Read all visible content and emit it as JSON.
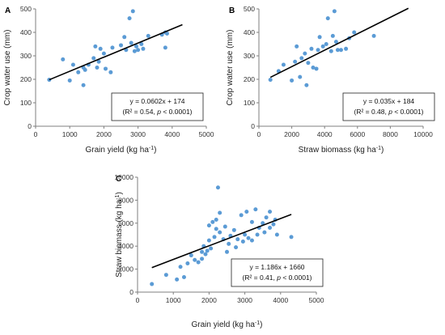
{
  "chart_data": [
    {
      "panel_label": "A",
      "type": "scatter",
      "xlabel": "Grain yield (kg ha⁻¹)",
      "ylabel": "Crop water use (mm)",
      "xlim": [
        0,
        5000
      ],
      "ylim": [
        0,
        500
      ],
      "xticks": [
        "0",
        "1000",
        "2000",
        "3000",
        "4000",
        "5000"
      ],
      "yticks": [
        "0",
        "100",
        "200",
        "300",
        "400",
        "500"
      ],
      "points": [
        [
          400,
          198
        ],
        [
          800,
          285
        ],
        [
          1000,
          195
        ],
        [
          1100,
          262
        ],
        [
          1250,
          230
        ],
        [
          1400,
          175
        ],
        [
          1400,
          250
        ],
        [
          1450,
          240
        ],
        [
          1550,
          262
        ],
        [
          1700,
          290
        ],
        [
          1750,
          340
        ],
        [
          1800,
          250
        ],
        [
          1850,
          275
        ],
        [
          1900,
          330
        ],
        [
          2000,
          310
        ],
        [
          2050,
          245
        ],
        [
          2200,
          230
        ],
        [
          2250,
          335
        ],
        [
          2500,
          345
        ],
        [
          2600,
          380
        ],
        [
          2650,
          325
        ],
        [
          2750,
          460
        ],
        [
          2800,
          355
        ],
        [
          2850,
          490
        ],
        [
          2900,
          320
        ],
        [
          2950,
          340
        ],
        [
          3000,
          325
        ],
        [
          3100,
          350
        ],
        [
          3150,
          330
        ],
        [
          3300,
          385
        ],
        [
          3700,
          390
        ],
        [
          3800,
          335
        ],
        [
          3800,
          400
        ],
        [
          3850,
          395
        ]
      ],
      "trendline": {
        "slope": 0.0602,
        "intercept": 174,
        "x_range": [
          400,
          4300
        ]
      },
      "annotation": {
        "line1": "y = 0.0602x + 174",
        "line2_prefix": "(R² = 0.54, ",
        "line2_p": "p",
        "line2_suffix": " < 0.0001)"
      },
      "grid": false
    },
    {
      "panel_label": "B",
      "type": "scatter",
      "xlabel": "Straw biomass (kg ha⁻¹)",
      "ylabel": "Crop water use (mm)",
      "xlim": [
        0,
        10000
      ],
      "ylim": [
        0,
        500
      ],
      "xticks": [
        "0",
        "2000",
        "4000",
        "6000",
        "8000",
        "10000"
      ],
      "yticks": [
        "0",
        "100",
        "200",
        "300",
        "400",
        "500"
      ],
      "points": [
        [
          700,
          198
        ],
        [
          1200,
          235
        ],
        [
          1500,
          262
        ],
        [
          2000,
          195
        ],
        [
          2200,
          275
        ],
        [
          2300,
          340
        ],
        [
          2500,
          210
        ],
        [
          2600,
          290
        ],
        [
          2800,
          310
        ],
        [
          2900,
          175
        ],
        [
          3000,
          270
        ],
        [
          3200,
          330
        ],
        [
          3300,
          250
        ],
        [
          3500,
          245
        ],
        [
          3600,
          325
        ],
        [
          3700,
          380
        ],
        [
          3900,
          340
        ],
        [
          4100,
          350
        ],
        [
          4200,
          460
        ],
        [
          4400,
          320
        ],
        [
          4500,
          385
        ],
        [
          4600,
          490
        ],
        [
          4700,
          360
        ],
        [
          4800,
          325
        ],
        [
          5000,
          325
        ],
        [
          5300,
          330
        ],
        [
          5500,
          375
        ],
        [
          5800,
          400
        ],
        [
          7000,
          385
        ]
      ],
      "trendline": {
        "slope": 0.035,
        "intercept": 184,
        "x_range": [
          700,
          9100
        ]
      },
      "annotation": {
        "line1": "y = 0.035x + 184",
        "line2_prefix": "(R² = 0.48, ",
        "line2_p": "p",
        "line2_suffix": " < 0.0001)"
      },
      "grid": false
    },
    {
      "panel_label": "C",
      "type": "scatter",
      "xlabel": "Grain yield (kg ha⁻¹)",
      "ylabel": "Straw biomass (kg ha⁻¹)",
      "xlim": [
        0,
        5000
      ],
      "ylim": [
        0,
        10000
      ],
      "xticks": [
        "0",
        "1000",
        "2000",
        "3000",
        "4000",
        "5000"
      ],
      "yticks": [
        "0",
        "2000",
        "4000",
        "6000",
        "8000",
        "10000"
      ],
      "points": [
        [
          400,
          700
        ],
        [
          800,
          1500
        ],
        [
          1100,
          1100
        ],
        [
          1200,
          2200
        ],
        [
          1300,
          1300
        ],
        [
          1400,
          2500
        ],
        [
          1500,
          3200
        ],
        [
          1600,
          2800
        ],
        [
          1700,
          2600
        ],
        [
          1800,
          2900
        ],
        [
          1800,
          3500
        ],
        [
          1850,
          4000
        ],
        [
          1900,
          3300
        ],
        [
          1950,
          3600
        ],
        [
          2000,
          4500
        ],
        [
          2000,
          5800
        ],
        [
          2050,
          3800
        ],
        [
          2100,
          6100
        ],
        [
          2150,
          4800
        ],
        [
          2200,
          5500
        ],
        [
          2200,
          6300
        ],
        [
          2250,
          9100
        ],
        [
          2300,
          5200
        ],
        [
          2300,
          6900
        ],
        [
          2400,
          4600
        ],
        [
          2450,
          5700
        ],
        [
          2500,
          3500
        ],
        [
          2550,
          4200
        ],
        [
          2600,
          4900
        ],
        [
          2700,
          5400
        ],
        [
          2750,
          3900
        ],
        [
          2800,
          4600
        ],
        [
          2900,
          6700
        ],
        [
          2950,
          4400
        ],
        [
          3000,
          5000
        ],
        [
          3050,
          7000
        ],
        [
          3100,
          4700
        ],
        [
          3200,
          4500
        ],
        [
          3200,
          6100
        ],
        [
          3300,
          7200
        ],
        [
          3350,
          5000
        ],
        [
          3400,
          5600
        ],
        [
          3500,
          6000
        ],
        [
          3550,
          5200
        ],
        [
          3600,
          6500
        ],
        [
          3700,
          5600
        ],
        [
          3700,
          7000
        ],
        [
          3800,
          5900
        ],
        [
          3850,
          6300
        ],
        [
          3900,
          5000
        ],
        [
          4300,
          4800
        ]
      ],
      "trendline": {
        "slope": 1.186,
        "intercept": 1660,
        "x_range": [
          400,
          4300
        ]
      },
      "annotation": {
        "line1": "y = 1.186x + 1660",
        "line2_prefix": "(R² = 0.41, ",
        "line2_p": "p",
        "line2_suffix": " < 0.0001)"
      },
      "grid": false
    }
  ],
  "colors": {
    "point": "#5b9bd5",
    "trendline": "#000000",
    "axis": "#7f7f7f",
    "text": "#333333"
  }
}
